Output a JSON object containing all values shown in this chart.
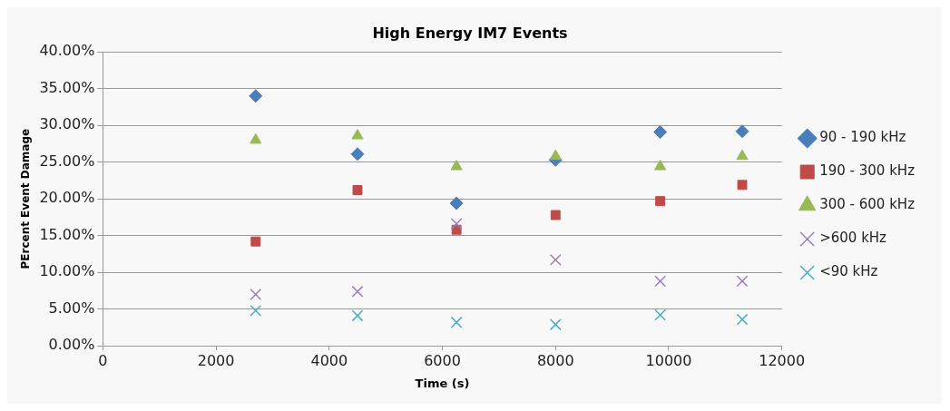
{
  "chart_data": {
    "type": "scatter",
    "title": "High Energy IM7 Events",
    "xlabel": "Time (s)",
    "ylabel": "PErcent Event Damage",
    "x": [
      2700,
      4500,
      6250,
      8000,
      9850,
      11300
    ],
    "series": [
      {
        "name": "90 - 190 kHz",
        "color": "#4a7ebb",
        "marker": "diamond",
        "values": [
          34.0,
          26.1,
          19.4,
          25.3,
          29.1,
          29.2
        ]
      },
      {
        "name": "190 - 300 kHz",
        "color": "#be4b48",
        "marker": "square",
        "values": [
          14.2,
          21.2,
          15.8,
          17.8,
          19.7,
          21.9
        ]
      },
      {
        "name": "300 - 600 kHz",
        "color": "#98b954",
        "marker": "triangle",
        "values": [
          28.0,
          28.6,
          24.4,
          25.8,
          24.4,
          25.8
        ]
      },
      {
        "name": ">600 kHz",
        "color": "#9a7fb8",
        "marker": "cross",
        "values": [
          7.0,
          7.4,
          16.6,
          11.7,
          8.8,
          8.8
        ]
      },
      {
        "name": "<90 kHz",
        "color": "#4bacc6",
        "marker": "cross",
        "values": [
          4.8,
          4.1,
          3.2,
          2.9,
          4.2,
          3.6
        ]
      }
    ],
    "xlim": [
      0,
      12000
    ],
    "xticks": [
      0,
      2000,
      4000,
      6000,
      8000,
      10000,
      12000
    ],
    "ylim": [
      0,
      40
    ],
    "yticks": [
      {
        "value": 0,
        "label": "0.00%"
      },
      {
        "value": 5,
        "label": "5.00%"
      },
      {
        "value": 10,
        "label": "10.00%"
      },
      {
        "value": 15,
        "label": "15.00%"
      },
      {
        "value": 20,
        "label": "20.00%"
      },
      {
        "value": 25,
        "label": "25.00%"
      },
      {
        "value": 30,
        "label": "30.00%"
      },
      {
        "value": 35,
        "label": "35.00%"
      },
      {
        "value": 40,
        "label": "40.00%"
      }
    ],
    "grid": "y",
    "legend": "right"
  }
}
